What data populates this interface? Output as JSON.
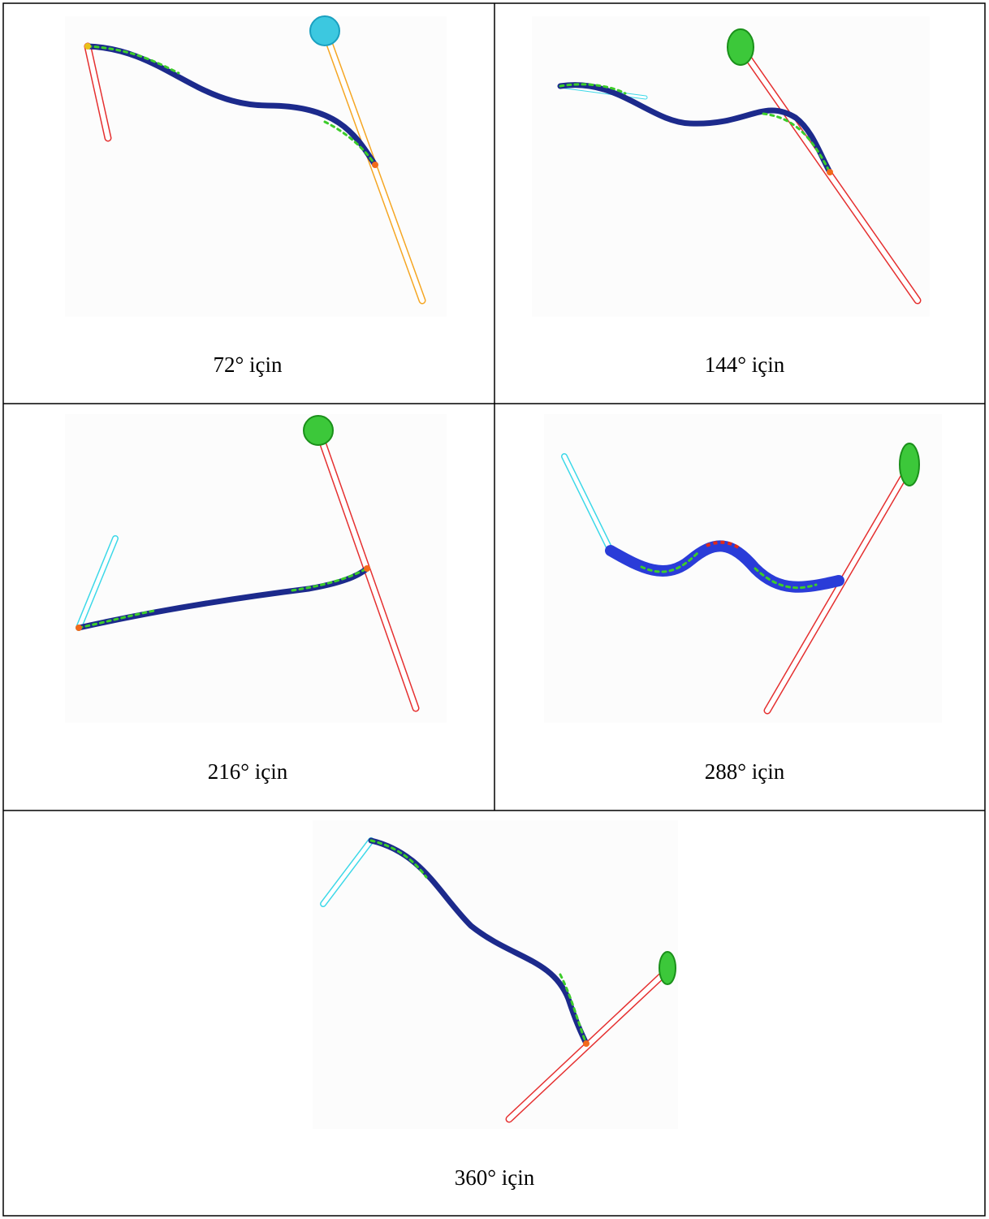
{
  "table": {
    "cells": [
      {
        "caption": "72° için"
      },
      {
        "caption": "144° için"
      },
      {
        "caption": "216° için"
      },
      {
        "caption": "288° için"
      },
      {
        "caption": "360° için"
      }
    ]
  }
}
